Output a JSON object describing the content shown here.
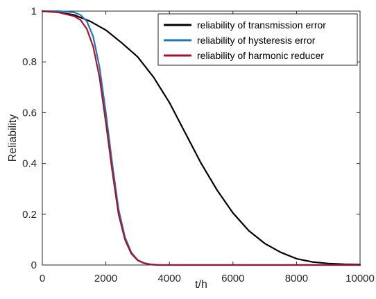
{
  "chart_data": {
    "type": "line",
    "title": "",
    "xlabel": "t/h",
    "ylabel": "Reliability",
    "xlim": [
      0,
      10000
    ],
    "ylim": [
      0,
      1
    ],
    "x_ticks": [
      0,
      2000,
      4000,
      6000,
      8000,
      10000
    ],
    "y_ticks": [
      0,
      0.2,
      0.4,
      0.6,
      0.8,
      1
    ],
    "x_tick_labels": [
      "0",
      "2000",
      "4000",
      "6000",
      "8000",
      "10000"
    ],
    "y_tick_labels": [
      "0",
      "0.2",
      "0.4",
      "0.6",
      "0.8",
      "1"
    ],
    "grid": false,
    "legend_position": "top-right",
    "series": [
      {
        "name": "reliability of transmission error",
        "color": "#000000",
        "x": [
          0,
          500,
          1000,
          1500,
          2000,
          2500,
          3000,
          3500,
          4000,
          4500,
          5000,
          5500,
          6000,
          6500,
          7000,
          7500,
          8000,
          8500,
          9000,
          9500,
          10000
        ],
        "y": [
          1.0,
          0.995,
          0.985,
          0.96,
          0.925,
          0.875,
          0.82,
          0.74,
          0.64,
          0.52,
          0.4,
          0.295,
          0.205,
          0.135,
          0.085,
          0.05,
          0.025,
          0.012,
          0.006,
          0.003,
          0.002
        ]
      },
      {
        "name": "reliability of hysteresis error",
        "color": "#1f77b4",
        "x": [
          0,
          500,
          1000,
          1200,
          1400,
          1600,
          1800,
          2000,
          2200,
          2400,
          2600,
          2800,
          3000,
          3200,
          3400,
          3600,
          3800,
          4000,
          10000
        ],
        "y": [
          1.0,
          1.0,
          0.995,
          0.985,
          0.96,
          0.9,
          0.78,
          0.6,
          0.4,
          0.22,
          0.11,
          0.05,
          0.02,
          0.008,
          0.003,
          0.001,
          0.0,
          0.0,
          0.0
        ]
      },
      {
        "name": "reliability of harmonic reducer",
        "color": "#a2142f",
        "x": [
          0,
          500,
          1000,
          1200,
          1400,
          1600,
          1800,
          2000,
          2200,
          2400,
          2600,
          2800,
          3000,
          3200,
          3400,
          3600,
          3800,
          4000,
          10000
        ],
        "y": [
          1.0,
          0.995,
          0.98,
          0.965,
          0.93,
          0.86,
          0.74,
          0.56,
          0.37,
          0.2,
          0.1,
          0.045,
          0.018,
          0.007,
          0.002,
          0.0,
          0.0,
          0.0,
          0.0
        ]
      }
    ]
  }
}
